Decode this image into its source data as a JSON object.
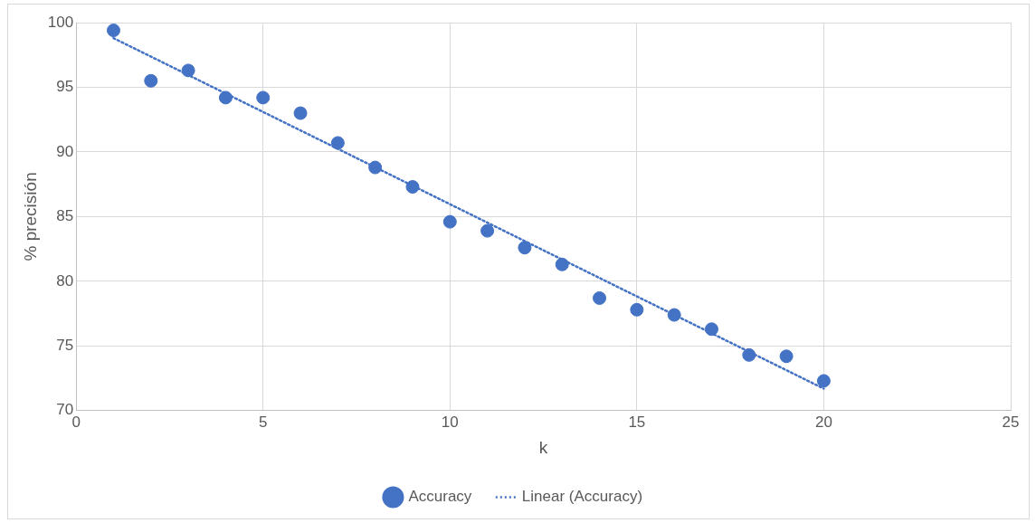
{
  "chart_data": {
    "type": "scatter",
    "xlabel": "k",
    "ylabel": "% precisión",
    "xlim": [
      0,
      25
    ],
    "ylim": [
      70,
      100
    ],
    "xticks": [
      0,
      5,
      10,
      15,
      20,
      25
    ],
    "yticks": [
      70,
      75,
      80,
      85,
      90,
      95,
      100
    ],
    "grid": true,
    "legend": "bottom",
    "series": [
      {
        "name": "Accuracy",
        "type": "scatter",
        "color": "#4472c4",
        "marker": "circle",
        "x": [
          1,
          2,
          3,
          4,
          5,
          6,
          7,
          8,
          9,
          10,
          11,
          12,
          13,
          14,
          15,
          16,
          17,
          18,
          19,
          20
        ],
        "values": [
          99.4,
          95.5,
          96.3,
          94.2,
          94.2,
          93.0,
          90.7,
          88.8,
          87.3,
          84.6,
          83.9,
          82.6,
          81.3,
          78.7,
          77.8,
          77.4,
          76.3,
          74.3,
          74.2,
          72.3
        ]
      },
      {
        "name": "Linear (Accuracy)",
        "type": "line",
        "color": "#4472c4",
        "line_style": "dotted",
        "marker": "none",
        "x": [
          1,
          20
        ],
        "values": [
          98.8,
          71.7
        ]
      }
    ]
  }
}
